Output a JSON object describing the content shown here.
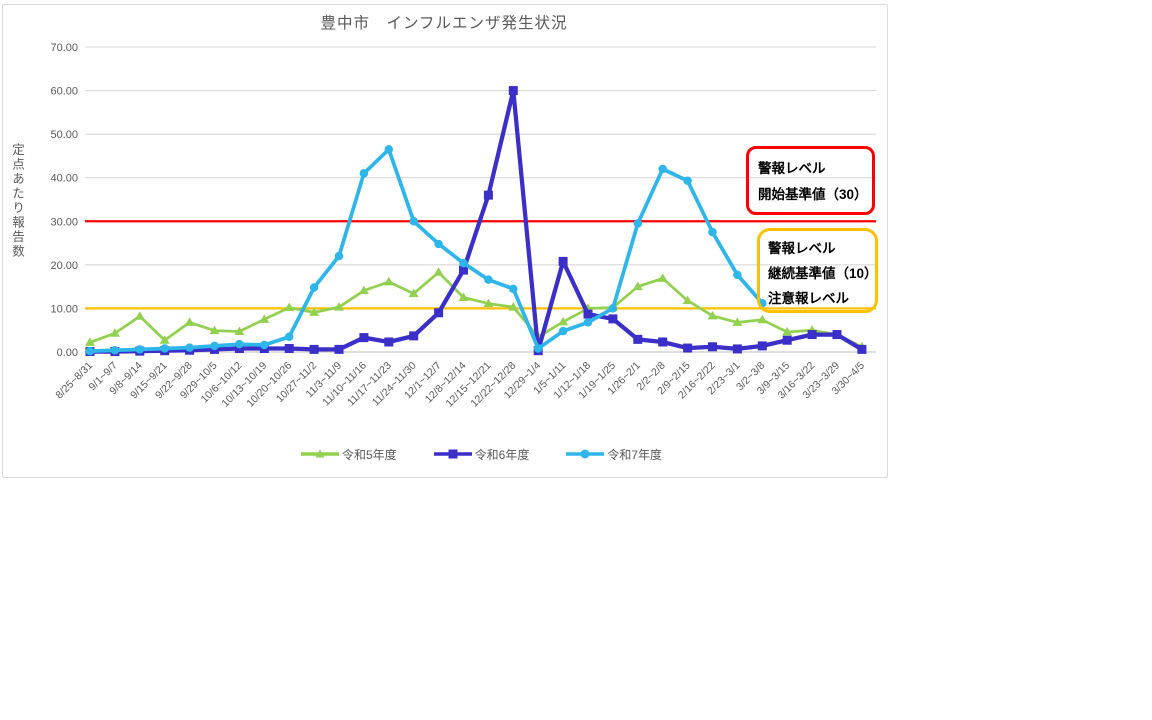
{
  "chart_data": {
    "type": "line",
    "title": "豊中市　インフルエンザ発生状況",
    "xlabel": "",
    "ylabel": "定点あたり報告数",
    "ylim": [
      0,
      70
    ],
    "grid": true,
    "legend_position": "bottom",
    "y_ticks": [
      {
        "value": 0,
        "label": "0.00"
      },
      {
        "value": 10,
        "label": "10.00"
      },
      {
        "value": 20,
        "label": "20.00"
      },
      {
        "value": 30,
        "label": "30.00"
      },
      {
        "value": 40,
        "label": "40.00"
      },
      {
        "value": 50,
        "label": "50.00"
      },
      {
        "value": 60,
        "label": "60.00"
      },
      {
        "value": 70,
        "label": "70.00"
      }
    ],
    "categories": [
      "8/25~8/31",
      "9/1~9/7",
      "9/8~9/14",
      "9/15~9/21",
      "9/22~9/28",
      "9/29~10/5",
      "10/6~10/12",
      "10/13~10/19",
      "10/20~10/26",
      "10/27~11/2",
      "11/3~11/9",
      "11/10~11/16",
      "11/17~11/23",
      "11/24~11/30",
      "12/1~12/7",
      "12/8~12/14",
      "12/15~12/21",
      "12/22~12/28",
      "12/29~1/4",
      "1/5~1/11",
      "1/12~1/18",
      "1/19~1/25",
      "1/26~2/1",
      "2/2~2/8",
      "2/9~2/15",
      "2/16~2/22",
      "2/23~3/1",
      "3/2~3/8",
      "3/9~3/15",
      "3/16~3/22",
      "3/23~3/29",
      "3/30~4/5"
    ],
    "series": [
      {
        "name": "令和5年度",
        "color": "#92D050",
        "marker": "triangle",
        "values": [
          2.2,
          4.3,
          8.2,
          2.7,
          6.8,
          4.9,
          4.7,
          7.5,
          10.2,
          9.1,
          10.3,
          14.1,
          16.1,
          13.4,
          18.3,
          12.5,
          11.1,
          10.3,
          3.5,
          6.9,
          10.0,
          10.2,
          15.0,
          16.9,
          11.8,
          8.3,
          6.8,
          7.4,
          4.6,
          5.0,
          4.0,
          1.2
        ]
      },
      {
        "name": "令和6年度",
        "color": "#3B2FC9",
        "marker": "square",
        "values": [
          0.1,
          0.1,
          0.2,
          0.3,
          0.4,
          0.6,
          0.8,
          0.8,
          0.8,
          0.6,
          0.6,
          3.3,
          2.3,
          3.7,
          9.0,
          18.8,
          36.0,
          60.0,
          0.3,
          20.8,
          8.7,
          7.6,
          2.9,
          2.3,
          0.9,
          1.2,
          0.7,
          1.4,
          2.7,
          4.0,
          4.0,
          0.6
        ]
      },
      {
        "name": "令和7年度",
        "color": "#2EB6EA",
        "marker": "circle",
        "values": [
          0.2,
          0.4,
          0.6,
          0.8,
          1.0,
          1.4,
          1.8,
          1.6,
          3.5,
          14.8,
          22.0,
          41.0,
          46.5,
          30.0,
          24.8,
          20.4,
          16.6,
          14.5,
          0.8,
          4.8,
          6.8,
          10.0,
          29.5,
          42.0,
          39.3,
          27.5,
          17.7,
          11.2,
          null,
          null,
          null,
          null
        ]
      }
    ],
    "reference_lines": [
      {
        "value": 30,
        "color": "#FF0000"
      },
      {
        "value": 10,
        "color": "#FFC000"
      }
    ]
  },
  "annotations": {
    "alert_start": {
      "border_color": "#FF0000",
      "lines": [
        "警報レベル",
        "開始基準値（30）"
      ]
    },
    "alert_continue": {
      "border_color": "#FFC000",
      "lines": [
        "警報レベル",
        "継続基準値（10）",
        "注意報レベル"
      ]
    }
  },
  "colors": {
    "gridline": "#D9D9D9",
    "axis_line": "#BFBFBF",
    "axis_text": "#595959",
    "title_text": "#595959"
  }
}
